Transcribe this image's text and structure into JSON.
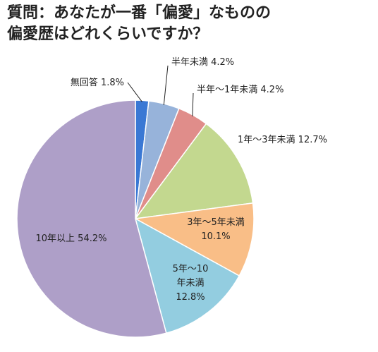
{
  "chart_data": {
    "type": "pie",
    "title_lines": [
      "質問：あなたが一番「偏愛」なものの",
      "偏愛歴はどれくらいですか？"
    ],
    "start": "12 o'clock",
    "direction": "clockwise",
    "slices": [
      {
        "label": "無回答",
        "value": 1.8,
        "display": "1.8%",
        "color": "#3a78d4"
      },
      {
        "label": "半年未満",
        "value": 4.2,
        "display": "4.2%",
        "color": "#97b3da"
      },
      {
        "label": "半年～1年未満",
        "value": 4.2,
        "display": "4.2%",
        "color": "#e08d8a"
      },
      {
        "label": "1年～3年未満",
        "value": 12.7,
        "display": "12.7%",
        "color": "#c3d88f"
      },
      {
        "label": "3年～5年未満",
        "value": 10.1,
        "display": "10.1%",
        "color": "#f9be87"
      },
      {
        "label": "5年～10年未満",
        "value": 12.8,
        "display": "12.8%",
        "color": "#93cde0"
      },
      {
        "label": "10年以上",
        "value": 54.2,
        "display": "54.2%",
        "color": "#ae9fc8"
      }
    ]
  }
}
